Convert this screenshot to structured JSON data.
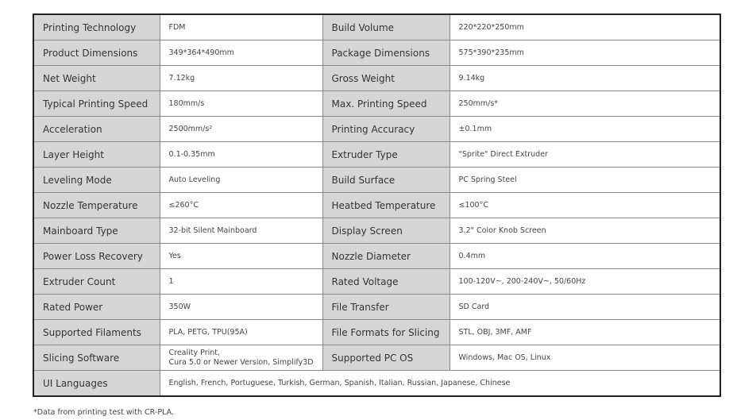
{
  "rows": [
    [
      [
        "Printing Technology",
        "FDM"
      ],
      [
        "Build Volume",
        "220*220*250mm"
      ]
    ],
    [
      [
        "Product Dimensions",
        "349*364*490mm"
      ],
      [
        "Package Dimensions",
        "575*390*235mm"
      ]
    ],
    [
      [
        "Net Weight",
        "7.12kg"
      ],
      [
        "Gross Weight",
        "9.14kg"
      ]
    ],
    [
      [
        "Typical Printing Speed",
        "180mm/s"
      ],
      [
        "Max. Printing Speed",
        "250mm/s*"
      ]
    ],
    [
      [
        "Acceleration",
        "2500mm/s²"
      ],
      [
        "Printing Accuracy",
        "±0.1mm"
      ]
    ],
    [
      [
        "Layer Height",
        "0.1-0.35mm"
      ],
      [
        "Extruder Type",
        "\"Sprite\" Direct Extruder"
      ]
    ],
    [
      [
        "Leveling Mode",
        "Auto Leveling"
      ],
      [
        "Build Surface",
        "PC Spring Steel"
      ]
    ],
    [
      [
        "Nozzle Temperature",
        "≤260°C"
      ],
      [
        "Heatbed Temperature",
        "≤100°C"
      ]
    ],
    [
      [
        "Mainboard Type",
        "32-bit Silent Mainboard"
      ],
      [
        "Display Screen",
        "3.2\" Color Knob Screen"
      ]
    ],
    [
      [
        "Power Loss Recovery",
        "Yes"
      ],
      [
        "Nozzle Diameter",
        "0.4mm"
      ]
    ],
    [
      [
        "Extruder Count",
        "1"
      ],
      [
        "Rated Voltage",
        "100-120V~, 200-240V~, 50/60Hz"
      ]
    ],
    [
      [
        "Rated Power",
        "350W"
      ],
      [
        "File Transfer",
        "SD Card"
      ]
    ],
    [
      [
        "Supported Filaments",
        "PLA, PETG, TPU(95A)"
      ],
      [
        "File Formats for Slicing",
        "STL, OBJ, 3MF, AMF"
      ]
    ],
    [
      [
        "Slicing Software",
        "Creality Print,\nCura 5.0 or Newer Version, Simplify3D"
      ],
      [
        "Supported PC OS",
        "Windows, Mac OS, Linux"
      ]
    ]
  ],
  "last_row": {
    "label": "UI Languages",
    "value": "English, French, Portuguese, Turkish, German, Spanish, Italian, Russian, Japanese, Chinese"
  },
  "footnote": "*Data from printing test with CR-PLA."
}
